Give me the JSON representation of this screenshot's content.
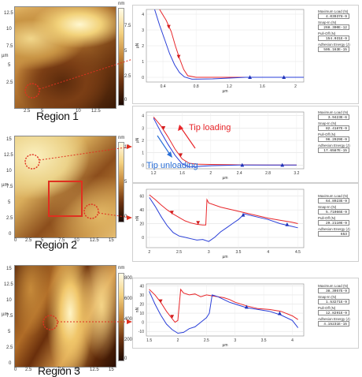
{
  "regions": {
    "r1": {
      "label": "Region 1"
    },
    "r2": {
      "label": "Region 2"
    },
    "r3": {
      "label": "Region 3"
    }
  },
  "afm_axes": {
    "r1": {
      "y_ticks": [
        "12.5",
        "10",
        "7.5",
        "5",
        "2.5",
        "0"
      ],
      "x_ticks": [
        "0",
        "2.5",
        "5",
        "7.5",
        "10",
        "12.5"
      ],
      "ylabel": "µm",
      "cbar": [
        "7.5",
        "5",
        "2.5",
        "0"
      ],
      "cbar_unit": "nm"
    },
    "r2": {
      "y_ticks": [
        "15",
        "12.5",
        "10",
        "7.5",
        "5",
        "2.5",
        "0"
      ],
      "x_ticks": [
        "0",
        "2.5",
        "5",
        "7.5",
        "10",
        "12.5",
        "15"
      ],
      "ylabel": "µm",
      "cbar": [
        "10",
        "5",
        "0"
      ],
      "cbar_unit": "nm"
    },
    "r3": {
      "y_ticks": [
        "15",
        "12.5",
        "10",
        "7.5",
        "5",
        "2.5",
        "0"
      ],
      "x_ticks": [
        "0",
        "2.5",
        "5",
        "7.5",
        "10",
        "12.5",
        "15"
      ],
      "ylabel": "µm",
      "cbar": [
        "800",
        "600",
        "400",
        "200",
        "0"
      ],
      "cbar_unit": "nm"
    }
  },
  "panels": [
    {
      "side": [
        {
          "label": "Maximum Load (N)",
          "value": "4.039378-9"
        },
        {
          "label": "Snap-In (N)",
          "value": "268.300E-12"
        },
        {
          "label": "Pull-Off (N)",
          "value": "154.031E-9"
        },
        {
          "label": "Adhesion Energy (J)",
          "value": "505.163E-15"
        }
      ]
    },
    {
      "side": [
        {
          "label": "Maximum Load (N)",
          "value": "3.9423E-6"
        },
        {
          "label": "Snap-In (N)",
          "value": "82.4187E-9"
        },
        {
          "label": "Pull-Off (N)",
          "value": "96.2929E-9"
        },
        {
          "label": "Adhesion Energy (J)",
          "value": "17.6587E-15"
        }
      ]
    },
    {
      "side": [
        {
          "label": "Maximum Load (N)",
          "value": "64.8923E-9"
        },
        {
          "label": "Snap-In (N)",
          "value": "5.71066E-9"
        },
        {
          "label": "Pull-Off (N)",
          "value": "29.2110E-9"
        },
        {
          "label": "Adhesion Energy (J)",
          "value": "653"
        }
      ]
    },
    {
      "side": [
        {
          "label": "Maximum Load (N)",
          "value": "38.3057E-9"
        },
        {
          "label": "Snap-In (N)",
          "value": "1.53271E-9"
        },
        {
          "label": "Pull-Off (N)",
          "value": "12.8291E-9"
        },
        {
          "label": "Adhesion Energy (J)",
          "value": "4.15231E-15"
        }
      ]
    }
  ],
  "annotations": {
    "tip_loading": "Tip loading",
    "tip_unloading": "Tip unloading"
  },
  "colors": {
    "loading": "#e8262a",
    "unloading": "#2a3fd8",
    "marker_red": "#d21d1d",
    "marker_blue": "#1f33b8"
  },
  "chart_data": [
    {
      "type": "line",
      "x_ticks": [
        "0.4",
        "0.8",
        "1.2",
        "1.6",
        "2"
      ],
      "y_ticks": [
        "4",
        "3",
        "2",
        "1",
        "0"
      ],
      "xlabel": "µm",
      "ylabel": "µN",
      "xlim": [
        0.2,
        2.1
      ],
      "ylim": [
        -0.3,
        4.3
      ],
      "series": [
        {
          "color": "loading",
          "x": [
            0.36,
            0.44,
            0.5,
            0.55,
            0.6,
            0.65,
            0.7,
            0.8,
            1.0,
            1.4,
            1.8,
            2.1
          ],
          "y": [
            4.3,
            3.6,
            2.9,
            2.0,
            1.2,
            0.5,
            0.1,
            0.0,
            0.0,
            0.0,
            0.0,
            0.0
          ]
        },
        {
          "color": "unloading",
          "x": [
            0.3,
            0.36,
            0.42,
            0.48,
            0.54,
            0.6,
            0.66,
            0.75,
            1.0,
            1.4,
            1.8,
            2.1
          ],
          "y": [
            4.3,
            3.3,
            2.4,
            1.5,
            0.8,
            0.3,
            0.02,
            -0.12,
            -0.1,
            0.0,
            0.0,
            0.0
          ]
        }
      ],
      "markers": [
        {
          "color": "marker_red",
          "x": 0.47,
          "y": 3.2,
          "dir": "down"
        },
        {
          "color": "marker_red",
          "x": 0.59,
          "y": 1.3,
          "dir": "down"
        },
        {
          "color": "marker_blue",
          "x": 1.45,
          "y": 0.02,
          "dir": "up"
        },
        {
          "color": "marker_blue",
          "x": 1.86,
          "y": 0.02,
          "dir": "up"
        }
      ]
    },
    {
      "type": "line",
      "x_ticks": [
        "1.2",
        "1.6",
        "2",
        "2.4",
        "2.8",
        "3.2"
      ],
      "y_ticks": [
        "4",
        "3",
        "2",
        "1",
        "0"
      ],
      "xlabel": "µm",
      "ylabel": "µN",
      "xlim": [
        1.1,
        3.3
      ],
      "ylim": [
        -0.3,
        4.3
      ],
      "series": [
        {
          "color": "loading",
          "x": [
            1.2,
            1.3,
            1.4,
            1.5,
            1.6,
            1.7,
            1.8,
            2.0,
            2.4,
            2.8,
            3.2
          ],
          "y": [
            3.9,
            3.2,
            2.3,
            1.3,
            0.5,
            0.15,
            0.08,
            0.05,
            0.02,
            0.0,
            0.0
          ]
        },
        {
          "color": "unloading",
          "x": [
            1.2,
            1.3,
            1.4,
            1.5,
            1.6,
            1.7,
            1.8,
            2.0,
            2.4,
            2.8,
            3.2
          ],
          "y": [
            3.8,
            2.7,
            1.7,
            0.8,
            0.1,
            -0.15,
            -0.12,
            -0.05,
            0.0,
            0.0,
            0.0
          ]
        }
      ],
      "markers": [
        {
          "color": "marker_red",
          "x": 1.34,
          "y": 3.0,
          "dir": "down"
        },
        {
          "color": "marker_red",
          "x": 1.58,
          "y": 0.8,
          "dir": "down"
        },
        {
          "color": "marker_blue",
          "x": 2.44,
          "y": 0.02,
          "dir": "up"
        },
        {
          "color": "marker_blue",
          "x": 3.0,
          "y": 0.02,
          "dir": "up"
        }
      ]
    },
    {
      "type": "line",
      "x_ticks": [
        "2",
        "2.5",
        "3",
        "3.5",
        "4",
        "4.5"
      ],
      "y_ticks": [
        "60",
        "40",
        "20",
        "0"
      ],
      "xlabel": "µm",
      "ylabel": "nN",
      "xlim": [
        1.95,
        4.6
      ],
      "ylim": [
        -15,
        70
      ],
      "series": [
        {
          "color": "loading",
          "x": [
            2.0,
            2.1,
            2.2,
            2.3,
            2.4,
            2.5,
            2.6,
            2.7,
            2.8,
            2.9,
            2.95,
            2.97,
            3.0,
            3.2,
            3.5,
            3.6,
            3.8,
            4.0,
            4.2,
            4.4,
            4.5
          ],
          "y": [
            62,
            55,
            47,
            40,
            34,
            29,
            24,
            21,
            19,
            18,
            18,
            55,
            50,
            44,
            38,
            36,
            32,
            28,
            25,
            22,
            20
          ]
        },
        {
          "color": "unloading",
          "x": [
            2.0,
            2.1,
            2.2,
            2.3,
            2.4,
            2.5,
            2.6,
            2.7,
            2.8,
            2.9,
            3.0,
            3.1,
            3.2,
            3.3,
            3.4,
            3.5,
            3.6,
            3.8,
            4.0,
            4.2,
            4.4,
            4.5
          ],
          "y": [
            58,
            45,
            30,
            17,
            7,
            2,
            0,
            -2,
            -4,
            -3,
            -6,
            0,
            8,
            14,
            20,
            26,
            34,
            30,
            26,
            20,
            16,
            14
          ]
        }
      ],
      "markers": [
        {
          "color": "marker_red",
          "x": 2.38,
          "y": 36,
          "dir": "down"
        },
        {
          "color": "marker_red",
          "x": 2.82,
          "y": 21,
          "dir": "down"
        },
        {
          "color": "marker_blue",
          "x": 3.58,
          "y": 33,
          "dir": "up"
        },
        {
          "color": "marker_blue",
          "x": 4.32,
          "y": 19,
          "dir": "up"
        }
      ]
    },
    {
      "type": "line",
      "x_ticks": [
        "1.5",
        "2",
        "2.5",
        "3",
        "3.5",
        "4"
      ],
      "y_ticks": [
        "40",
        "30",
        "20",
        "10",
        "0",
        "-10"
      ],
      "xlabel": "µm",
      "ylabel": "nN",
      "xlim": [
        1.45,
        4.2
      ],
      "ylim": [
        -15,
        42
      ],
      "series": [
        {
          "color": "loading",
          "x": [
            1.5,
            1.6,
            1.7,
            1.8,
            1.9,
            1.95,
            2.0,
            2.05,
            2.1,
            2.2,
            2.3,
            2.4,
            2.5,
            2.6,
            2.7,
            2.8,
            2.9,
            3.0,
            3.2,
            3.4,
            3.6,
            3.8,
            4.0,
            4.1
          ],
          "y": [
            36,
            30,
            22,
            12,
            4,
            0,
            2,
            36,
            32,
            30,
            31,
            28,
            30,
            29,
            28,
            27,
            25,
            22,
            18,
            15,
            14,
            12,
            7,
            3
          ]
        },
        {
          "color": "unloading",
          "x": [
            1.5,
            1.6,
            1.7,
            1.8,
            1.9,
            2.0,
            2.1,
            2.2,
            2.3,
            2.4,
            2.5,
            2.55,
            2.6,
            2.7,
            2.8,
            2.9,
            3.0,
            3.2,
            3.4,
            3.6,
            3.8,
            4.0,
            4.1
          ],
          "y": [
            34,
            20,
            8,
            -2,
            -8,
            -12,
            -11,
            -7,
            -5,
            0,
            5,
            10,
            30,
            28,
            25,
            22,
            20,
            16,
            14,
            12,
            8,
            2,
            -6
          ]
        }
      ],
      "markers": [
        {
          "color": "marker_red",
          "x": 1.7,
          "y": 23,
          "dir": "down"
        },
        {
          "color": "marker_red",
          "x": 1.9,
          "y": 6,
          "dir": "down"
        },
        {
          "color": "marker_blue",
          "x": 3.2,
          "y": 17,
          "dir": "up"
        },
        {
          "color": "marker_blue",
          "x": 3.78,
          "y": 10,
          "dir": "up"
        }
      ]
    }
  ]
}
